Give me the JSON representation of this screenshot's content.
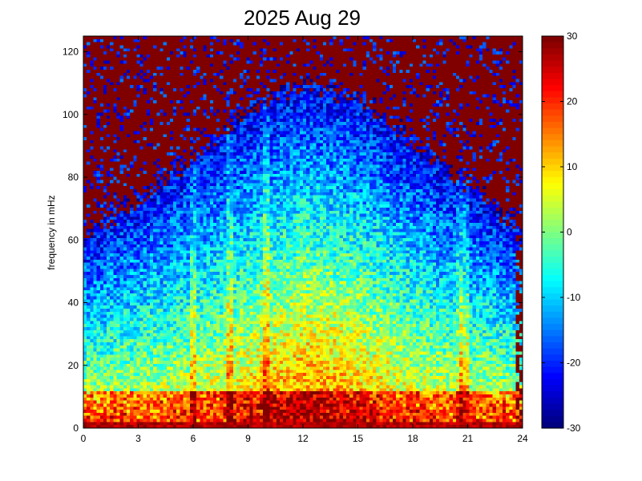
{
  "chart_data": {
    "type": "heatmap",
    "title": "2025 Aug 29",
    "xlabel": "",
    "ylabel": "frequency in mHz",
    "xlim": [
      0,
      24
    ],
    "ylim": [
      0,
      125
    ],
    "x_ticks": [
      0,
      3,
      6,
      9,
      12,
      15,
      18,
      21,
      24
    ],
    "y_ticks": [
      0,
      20,
      40,
      60,
      80,
      100,
      120
    ],
    "colorbar": {
      "range": [
        -30,
        30
      ],
      "ticks": [
        30,
        20,
        10,
        0,
        -10,
        -20,
        -30
      ],
      "colormap": "jet"
    },
    "grid": false,
    "x_bins": 132,
    "y_bins": 128,
    "power_profile_by_hour": [
      {
        "hour": 0,
        "cutoff_mHz": 60
      },
      {
        "hour": 3,
        "cutoff_mHz": 72
      },
      {
        "hour": 6,
        "cutoff_mHz": 85
      },
      {
        "hour": 9,
        "cutoff_mHz": 100
      },
      {
        "hour": 12,
        "cutoff_mHz": 108
      },
      {
        "hour": 15,
        "cutoff_mHz": 104
      },
      {
        "hour": 18,
        "cutoff_mHz": 90
      },
      {
        "hour": 21,
        "cutoff_mHz": 76
      },
      {
        "hour": 24,
        "cutoff_mHz": 62
      }
    ],
    "bright_lines_hours": [
      20.6,
      20.9,
      6.0,
      8.0,
      10.0
    ],
    "strong_low_frequency_band_mHz": [
      0,
      12
    ]
  }
}
